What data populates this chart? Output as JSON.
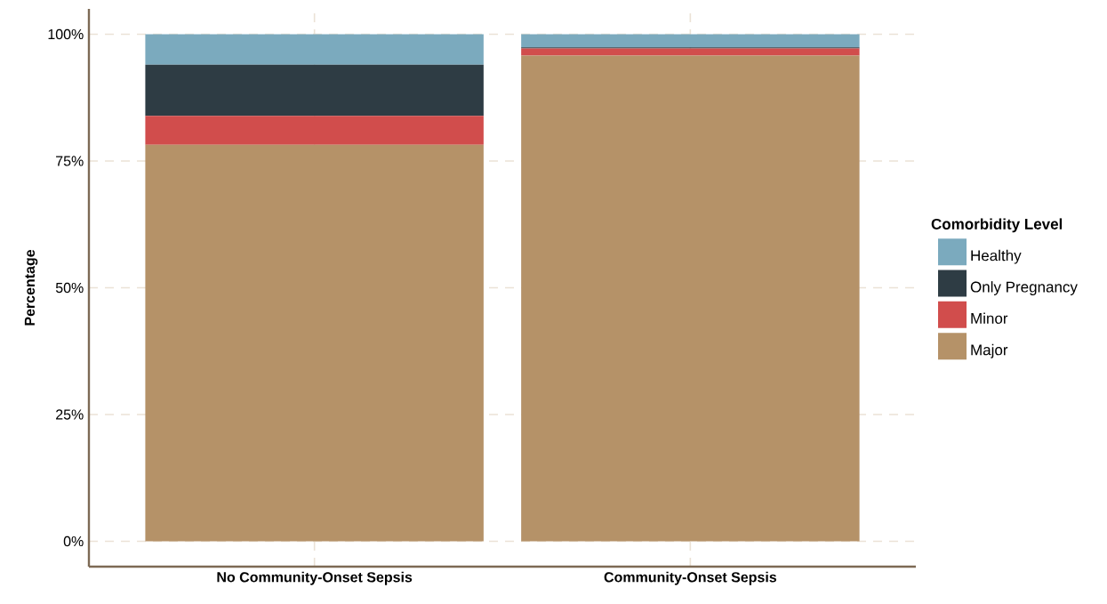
{
  "chart_data": {
    "type": "bar",
    "stacked": true,
    "categories": [
      "No Community-Onset Sepsis",
      "Community-Onset Sepsis"
    ],
    "series": [
      {
        "name": "Major",
        "color": "#b59268",
        "values": [
          78.2,
          95.8
        ]
      },
      {
        "name": "Minor",
        "color": "#d14d4c",
        "values": [
          5.7,
          1.4
        ]
      },
      {
        "name": "Only Pregnancy",
        "color": "#2e3c44",
        "values": [
          10.1,
          0.2
        ]
      },
      {
        "name": "Healthy",
        "color": "#7baabe",
        "values": [
          6.0,
          2.6
        ]
      }
    ],
    "ylabel": "Percentage",
    "legend_title": "Comorbidity Level",
    "legend": "right",
    "grid": true,
    "ylim": [
      -5,
      105
    ],
    "yticks": [
      {
        "value": 0,
        "label": "0%"
      },
      {
        "value": 25,
        "label": "25%"
      },
      {
        "value": 50,
        "label": "50%"
      },
      {
        "value": 75,
        "label": "75%"
      },
      {
        "value": 100,
        "label": "100%"
      }
    ]
  }
}
